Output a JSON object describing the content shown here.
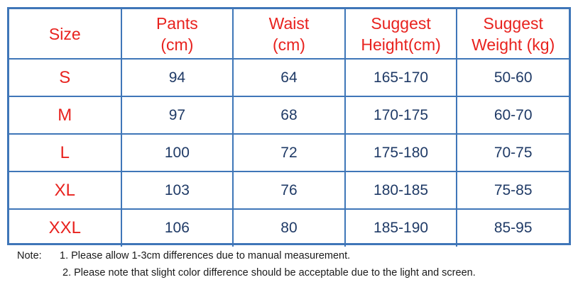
{
  "headers": [
    {
      "line1": "Size",
      "line2": ""
    },
    {
      "line1": "Pants",
      "line2": "(cm)"
    },
    {
      "line1": "Waist",
      "line2": "(cm)"
    },
    {
      "line1": "Suggest",
      "line2": "Height(cm)"
    },
    {
      "line1": "Suggest",
      "line2": "Weight (kg)"
    }
  ],
  "rows": [
    [
      "S",
      "94",
      "64",
      "165-170",
      "50-60"
    ],
    [
      "M",
      "97",
      "68",
      "170-175",
      "60-70"
    ],
    [
      "L",
      "100",
      "72",
      "175-180",
      "70-75"
    ],
    [
      "XL",
      "103",
      "76",
      "180-185",
      "75-85"
    ],
    [
      "XXL",
      "106",
      "80",
      "185-190",
      "85-95"
    ]
  ],
  "notes": {
    "label": "Note:",
    "items": [
      "1. Please allow 1-3cm differences due to manual measurement.",
      "2. Please note that slight color difference should be acceptable due to the light and screen."
    ]
  },
  "colors": {
    "grid": "#3f76b8",
    "header_text": "#e8221e",
    "size_text": "#e8221e",
    "value_text": "#1f3a66"
  }
}
